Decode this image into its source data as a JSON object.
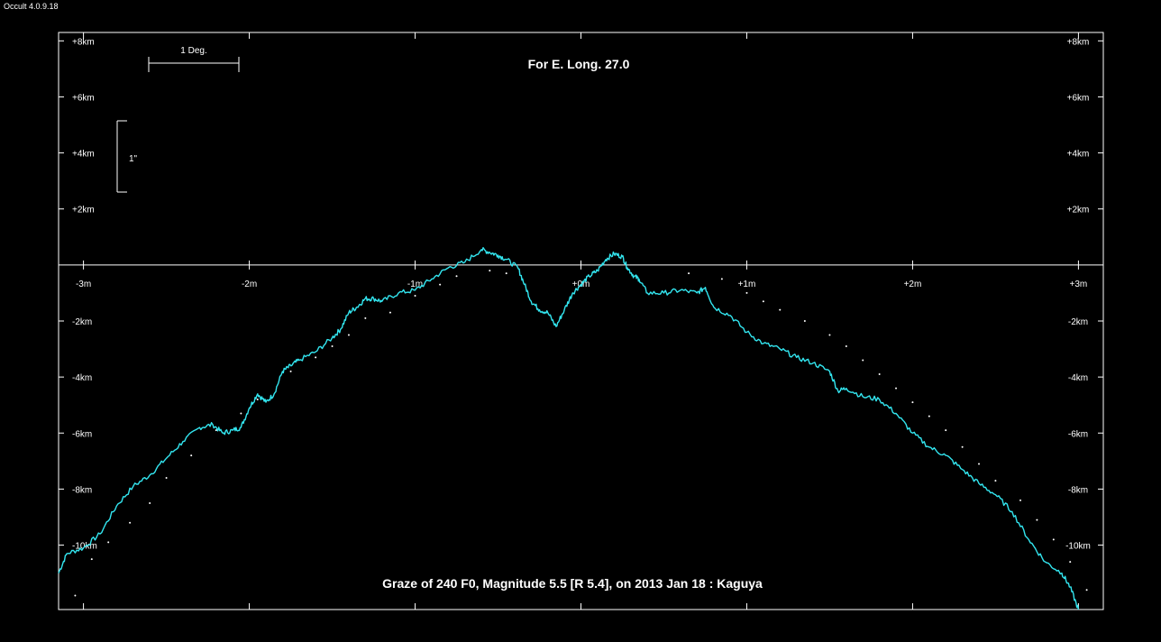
{
  "window": {
    "title": "Occult 4.0.9.18"
  },
  "chart_data": {
    "type": "line",
    "title": "For E. Long. 27.0",
    "footer": "Graze of  240 F0,  Magnitude 5.5 [R 5.4],  on 2013 Jan 18  :  Kaguya",
    "x_tick_labels": [
      "-3m",
      "-2m",
      "-1m",
      "+0m",
      "+1m",
      "+2m",
      "+3m"
    ],
    "x_ticks": [
      -3,
      -2,
      -1,
      0,
      1,
      2,
      3
    ],
    "xlim": [
      -3.15,
      3.15
    ],
    "y_tick_labels_left": [
      "+8km",
      "+6km",
      "+4km",
      "+2km",
      "-2km",
      "-4km",
      "-6km",
      "-8km",
      "-10km"
    ],
    "y_tick_labels_right": [
      "+8km",
      "+6km",
      "+4km",
      "+2km",
      "-2km",
      "-4km",
      "-6km",
      "-8km",
      "-10km"
    ],
    "y_ticks": [
      8,
      6,
      4,
      2,
      -2,
      -4,
      -6,
      -8,
      -10
    ],
    "ylim": [
      -12.3,
      8.3
    ],
    "scale_bar_horizontal": "1 Deg.",
    "scale_bar_vertical": "1\"",
    "colors": {
      "background": "#000000",
      "profile": "#33e6f0",
      "axes": "#ffffff",
      "dots": "#ffffff"
    },
    "series": [
      {
        "type": "line",
        "x": [
          -3.15,
          -3.1,
          -3.0,
          -2.9,
          -2.8,
          -2.7,
          -2.6,
          -2.5,
          -2.4,
          -2.3,
          -2.22,
          -2.16,
          -2.1,
          -2.05,
          -2.0,
          -1.95,
          -1.9,
          -1.85,
          -1.8,
          -1.75,
          -1.7,
          -1.6,
          -1.5,
          -1.45,
          -1.4,
          -1.35,
          -1.3,
          -1.25,
          -1.2,
          -1.1,
          -1.0,
          -0.9,
          -0.8,
          -0.7,
          -0.6,
          -0.55,
          -0.5,
          -0.45,
          -0.38,
          -0.34,
          -0.3,
          -0.25,
          -0.2,
          -0.15,
          -0.1,
          -0.05,
          0.0,
          0.05,
          0.1,
          0.15,
          0.2,
          0.25,
          0.28,
          0.32,
          0.35,
          0.4,
          0.5,
          0.6,
          0.7,
          0.75,
          0.8,
          0.9,
          1.0,
          1.1,
          1.2,
          1.3,
          1.4,
          1.5,
          1.55,
          1.6,
          1.7,
          1.8,
          1.9,
          2.0,
          2.1,
          2.2,
          2.3,
          2.4,
          2.5,
          2.6,
          2.7,
          2.8,
          2.9,
          2.95,
          3.0
        ],
        "y": [
          -11.0,
          -10.3,
          -10.1,
          -9.6,
          -8.6,
          -7.9,
          -7.5,
          -6.9,
          -6.3,
          -5.8,
          -5.7,
          -6.0,
          -5.9,
          -5.8,
          -5.1,
          -4.6,
          -4.9,
          -4.6,
          -3.8,
          -3.6,
          -3.4,
          -3.1,
          -2.6,
          -2.3,
          -1.7,
          -1.5,
          -1.2,
          -1.2,
          -1.3,
          -1.0,
          -0.9,
          -0.5,
          -0.1,
          0.1,
          0.55,
          0.45,
          0.35,
          0.2,
          -0.1,
          -0.7,
          -1.3,
          -1.6,
          -1.7,
          -2.2,
          -1.6,
          -1.0,
          -0.7,
          -0.4,
          -0.2,
          0.2,
          0.4,
          0.3,
          -0.1,
          -0.4,
          -0.5,
          -1.0,
          -1.0,
          -0.9,
          -1.0,
          -0.8,
          -1.5,
          -1.8,
          -2.4,
          -2.8,
          -3.0,
          -3.3,
          -3.5,
          -3.8,
          -4.5,
          -4.4,
          -4.7,
          -4.8,
          -5.3,
          -6.0,
          -6.5,
          -6.8,
          -7.3,
          -7.8,
          -8.2,
          -8.8,
          -9.8,
          -10.6,
          -11.0,
          -11.5,
          -12.3
        ]
      },
      {
        "type": "scatter",
        "x": [
          -3.05,
          -2.95,
          -2.85,
          -2.72,
          -2.6,
          -2.5,
          -2.35,
          -2.2,
          -2.05,
          -1.95,
          -1.75,
          -1.6,
          -1.5,
          -1.4,
          -1.3,
          -1.15,
          -1.0,
          -0.85,
          -0.75,
          -0.55,
          -0.45,
          0.65,
          0.85,
          1.0,
          1.1,
          1.2,
          1.35,
          1.5,
          1.6,
          1.7,
          1.8,
          1.9,
          2.0,
          2.1,
          2.2,
          2.3,
          2.4,
          2.5,
          2.65,
          2.75,
          2.85,
          2.95,
          3.05
        ],
        "y": [
          -11.8,
          -10.5,
          -9.9,
          -9.2,
          -8.5,
          -7.6,
          -6.8,
          -5.9,
          -5.3,
          -4.8,
          -3.8,
          -3.3,
          -2.9,
          -2.5,
          -1.9,
          -1.7,
          -1.1,
          -0.7,
          -0.4,
          -0.2,
          -0.3,
          -0.3,
          -0.5,
          -1.0,
          -1.3,
          -1.6,
          -2.0,
          -2.5,
          -2.9,
          -3.4,
          -3.9,
          -4.4,
          -4.9,
          -5.4,
          -5.9,
          -6.5,
          -7.1,
          -7.7,
          -8.4,
          -9.1,
          -9.8,
          -10.6,
          -11.6
        ]
      }
    ]
  }
}
